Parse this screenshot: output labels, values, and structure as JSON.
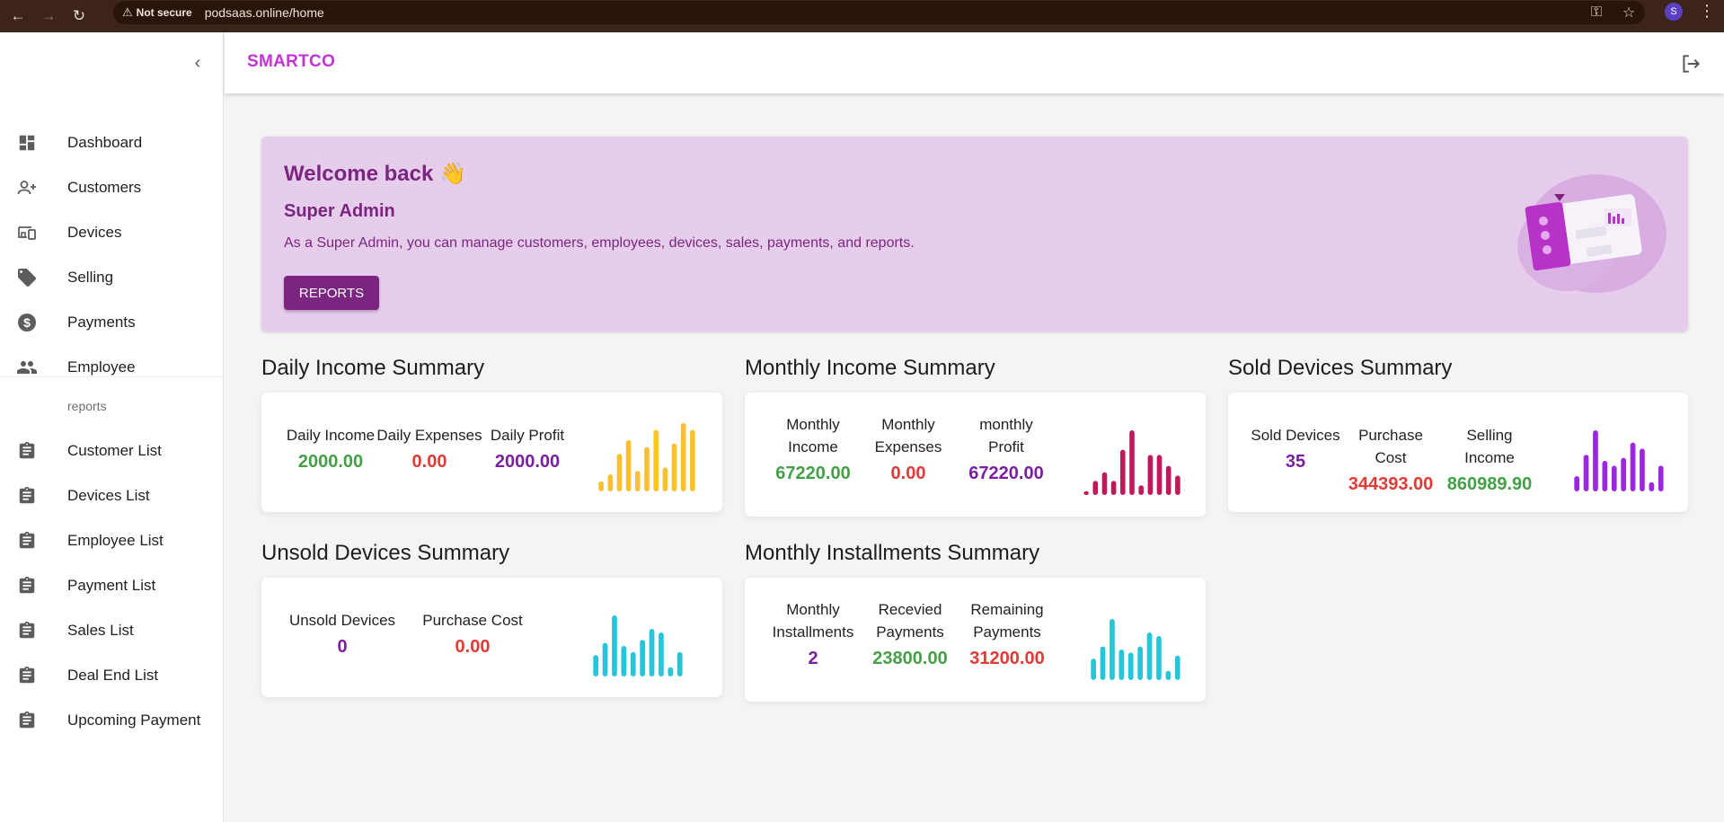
{
  "browser": {
    "security_label": "Not secure",
    "url": "podsaas.online/home",
    "profile_initial": "S"
  },
  "app": {
    "brand": "SMARTCO"
  },
  "sidebar": {
    "items": [
      {
        "label": "Dashboard",
        "icon": "dashboard-icon"
      },
      {
        "label": "Customers",
        "icon": "add-user-icon"
      },
      {
        "label": "Devices",
        "icon": "devices-icon"
      },
      {
        "label": "Selling",
        "icon": "tag-icon"
      },
      {
        "label": "Payments",
        "icon": "dollar-icon"
      },
      {
        "label": "Employee",
        "icon": "people-icon"
      }
    ],
    "section_label": "reports",
    "report_items": [
      {
        "label": "Customer List",
        "icon": "clipboard-icon"
      },
      {
        "label": "Devices List",
        "icon": "clipboard-icon"
      },
      {
        "label": "Employee List",
        "icon": "clipboard-icon"
      },
      {
        "label": "Payment List",
        "icon": "clipboard-icon"
      },
      {
        "label": "Sales List",
        "icon": "clipboard-icon"
      },
      {
        "label": "Deal End List",
        "icon": "clipboard-icon"
      },
      {
        "label": "Upcoming Payment",
        "icon": "clipboard-icon"
      }
    ]
  },
  "welcome": {
    "title": "Welcome back 👋",
    "role": "Super Admin",
    "description": "As a Super Admin, you can manage customers, employees, devices, sales, payments, and reports.",
    "button_label": "REPORTS"
  },
  "summaries": {
    "daily": {
      "title": "Daily Income Summary",
      "stats": [
        {
          "label": "Daily Income",
          "value": "2000.00"
        },
        {
          "label": "Daily Expenses",
          "value": "0.00"
        },
        {
          "label": "Daily Profit",
          "value": "2000.00"
        }
      ],
      "chart_color": "#fbc02d"
    },
    "monthly": {
      "title": "Monthly Income Summary",
      "stats": [
        {
          "label": "Monthly Income",
          "value": "67220.00"
        },
        {
          "label": "Monthly Expenses",
          "value": "0.00"
        },
        {
          "label": "monthly Profit",
          "value": "67220.00"
        }
      ],
      "chart_color": "#c2185b"
    },
    "sold": {
      "title": "Sold Devices Summary",
      "stats": [
        {
          "label": "Sold Devices",
          "value": "35"
        },
        {
          "label": "Purchase Cost",
          "value": "344393.00"
        },
        {
          "label": "Selling Income",
          "value": "860989.90"
        }
      ],
      "chart_color": "#9c27e0"
    },
    "unsold": {
      "title": "Unsold Devices Summary",
      "stats": [
        {
          "label": "Unsold Devices",
          "value": "0"
        },
        {
          "label": "Purchase Cost",
          "value": "0.00"
        }
      ],
      "chart_color": "#26c6da"
    },
    "installments": {
      "title": "Monthly Installments Summary",
      "stats": [
        {
          "label": "Monthly Installments",
          "value": "2"
        },
        {
          "label": "Recevied Payments",
          "value": "23800.00"
        },
        {
          "label": "Remaining Payments",
          "value": "31200.00"
        }
      ],
      "chart_color": "#26c6da"
    }
  },
  "colors": {
    "accent": "#7b2580",
    "brand": "#c233d6",
    "banner_bg": "#e7cdec",
    "positive": "#43a047",
    "negative": "#e53935",
    "neutral": "#7b1fa2"
  }
}
